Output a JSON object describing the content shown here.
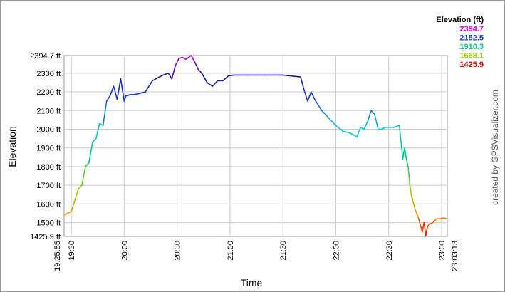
{
  "chart_data": {
    "type": "line",
    "xlabel": "Time",
    "ylabel": "Elevation",
    "x_start": "19:25:55",
    "x_end": "23:03:13",
    "x_ticks": [
      "19:30",
      "20:00",
      "20:30",
      "21:00",
      "21:30",
      "22:00",
      "22:30",
      "23:00"
    ],
    "y_ticks": [
      "1425.9 ft",
      "1500 ft",
      "1600 ft",
      "1700 ft",
      "1800 ft",
      "1900 ft",
      "2000 ft",
      "2100 ft",
      "2200 ft",
      "2300 ft",
      "2394.7 ft"
    ],
    "ylim": [
      1425.9,
      2394.7
    ],
    "grid": true,
    "legend": {
      "title": "Elevation (ft)",
      "position": "top-right",
      "entries": [
        {
          "label": "2394.7",
          "color": "#cc00cc"
        },
        {
          "label": "2152.5",
          "color": "#2244cc"
        },
        {
          "label": "1910.3",
          "color": "#00cc88"
        },
        {
          "label": "1668.1",
          "color": "#99cc00"
        },
        {
          "label": "1425.9",
          "color": "#dd0000"
        }
      ]
    },
    "credit": "created by GPSVisualizer.com",
    "series": [
      {
        "x": [
          "19:25:55",
          "19:28",
          "19:30",
          "19:32",
          "19:34",
          "19:36",
          "19:38",
          "19:40",
          "19:42",
          "19:44",
          "19:46",
          "19:48",
          "19:50",
          "19:52",
          "19:54",
          "19:56",
          "19:58",
          "20:00",
          "20:01",
          "20:02",
          "20:03",
          "20:05",
          "20:08",
          "20:12",
          "20:16",
          "20:20",
          "20:22",
          "20:25",
          "20:27",
          "20:29",
          "20:31",
          "20:33",
          "20:35",
          "20:38",
          "20:40",
          "20:42",
          "20:44",
          "20:47",
          "20:50",
          "20:53",
          "20:56",
          "20:59",
          "21:02",
          "21:05",
          "21:10",
          "21:20",
          "21:30",
          "21:40",
          "21:42",
          "21:44",
          "21:46",
          "21:48",
          "21:50",
          "21:52",
          "21:54",
          "21:56",
          "21:58",
          "22:00",
          "22:04",
          "22:08",
          "22:12",
          "22:14",
          "22:16",
          "22:18",
          "22:20",
          "22:22",
          "22:24",
          "22:26",
          "22:28",
          "22:30",
          "22:33",
          "22:36",
          "22:38",
          "22:39",
          "22:40",
          "22:41",
          "22:42",
          "22:43",
          "22:45",
          "22:47",
          "22:49",
          "22:50",
          "22:51",
          "22:52",
          "22:53",
          "22:55",
          "22:57",
          "22:59",
          "23:01",
          "23:03:13"
        ],
        "y": [
          1540,
          1550,
          1560,
          1620,
          1680,
          1700,
          1800,
          1820,
          1930,
          1950,
          2030,
          2020,
          2150,
          2180,
          2230,
          2160,
          2270,
          2150,
          2180,
          2180,
          2185,
          2185,
          2190,
          2200,
          2260,
          2280,
          2290,
          2300,
          2270,
          2340,
          2380,
          2385,
          2375,
          2395,
          2360,
          2320,
          2300,
          2250,
          2230,
          2260,
          2260,
          2285,
          2290,
          2290,
          2290,
          2290,
          2290,
          2280,
          2210,
          2150,
          2200,
          2160,
          2130,
          2100,
          2080,
          2060,
          2040,
          2020,
          1990,
          1980,
          1960,
          2010,
          2000,
          2040,
          2100,
          2080,
          2000,
          2000,
          2010,
          2010,
          2010,
          2020,
          1840,
          1900,
          1840,
          1800,
          1700,
          1640,
          1570,
          1520,
          1450,
          1500,
          1430,
          1480,
          1490,
          1500,
          1520,
          1520,
          1525,
          1520
        ]
      }
    ]
  }
}
